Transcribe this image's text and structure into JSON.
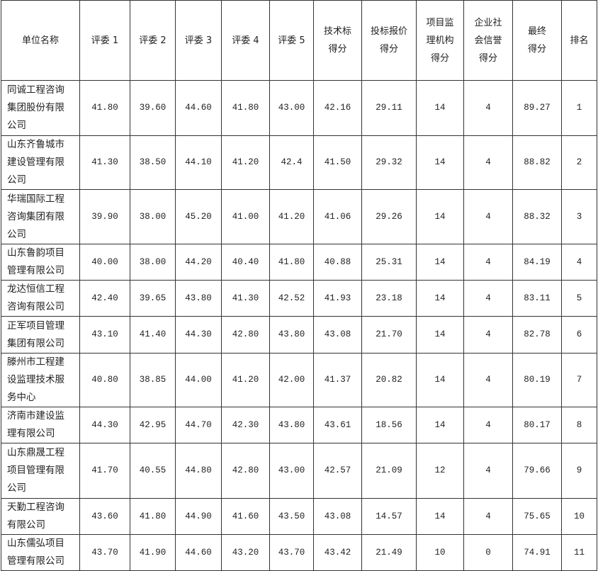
{
  "table": {
    "headers": [
      "单位名称",
      "评委 1",
      "评委 2",
      "评委 3",
      "评委 4",
      "评委 5",
      "技术标\n得分",
      "投标报价\n得分",
      "项目监\n理机构\n得分",
      "企业社\n会信誉\n得分",
      "最终\n得分",
      "排名"
    ],
    "rows": [
      [
        "同诚工程咨询\n集团股份有限\n公司",
        "41.80",
        "39.60",
        "44.60",
        "41.80",
        "43.00",
        "42.16",
        "29.11",
        "14",
        "4",
        "89.27",
        "1"
      ],
      [
        "山东齐鲁城市\n建设管理有限\n公司",
        "41.30",
        "38.50",
        "44.10",
        "41.20",
        "42.4",
        "41.50",
        "29.32",
        "14",
        "4",
        "88.82",
        "2"
      ],
      [
        "华瑞国际工程\n咨询集团有限\n公司",
        "39.90",
        "38.00",
        "45.20",
        "41.00",
        "41.20",
        "41.06",
        "29.26",
        "14",
        "4",
        "88.32",
        "3"
      ],
      [
        "山东鲁韵项目\n管理有限公司",
        "40.00",
        "38.00",
        "44.20",
        "40.40",
        "41.80",
        "40.88",
        "25.31",
        "14",
        "4",
        "84.19",
        "4"
      ],
      [
        "龙达恒信工程\n咨询有限公司",
        "42.40",
        "39.65",
        "43.80",
        "41.30",
        "42.52",
        "41.93",
        "23.18",
        "14",
        "4",
        "83.11",
        "5"
      ],
      [
        "正军项目管理\n集团有限公司",
        "43.10",
        "41.40",
        "44.30",
        "42.80",
        "43.80",
        "43.08",
        "21.70",
        "14",
        "4",
        "82.78",
        "6"
      ],
      [
        "滕州市工程建\n设监理技术服\n务中心",
        "40.80",
        "38.85",
        "44.00",
        "41.20",
        "42.00",
        "41.37",
        "20.82",
        "14",
        "4",
        "80.19",
        "7"
      ],
      [
        "济南市建设监\n理有限公司",
        "44.30",
        "42.95",
        "44.70",
        "42.30",
        "43.80",
        "43.61",
        "18.56",
        "14",
        "4",
        "80.17",
        "8"
      ],
      [
        "山东鼎晟工程\n项目管理有限\n公司",
        "41.70",
        "40.55",
        "44.80",
        "42.80",
        "43.00",
        "42.57",
        "21.09",
        "12",
        "4",
        "79.66",
        "9"
      ],
      [
        "天勤工程咨询\n有限公司",
        "43.60",
        "41.80",
        "44.90",
        "41.60",
        "43.50",
        "43.08",
        "14.57",
        "14",
        "4",
        "75.65",
        "10"
      ],
      [
        "山东儒弘项目\n管理有限公司",
        "43.70",
        "41.90",
        "44.60",
        "43.20",
        "43.70",
        "43.42",
        "21.49",
        "10",
        "0",
        "74.91",
        "11"
      ]
    ]
  }
}
